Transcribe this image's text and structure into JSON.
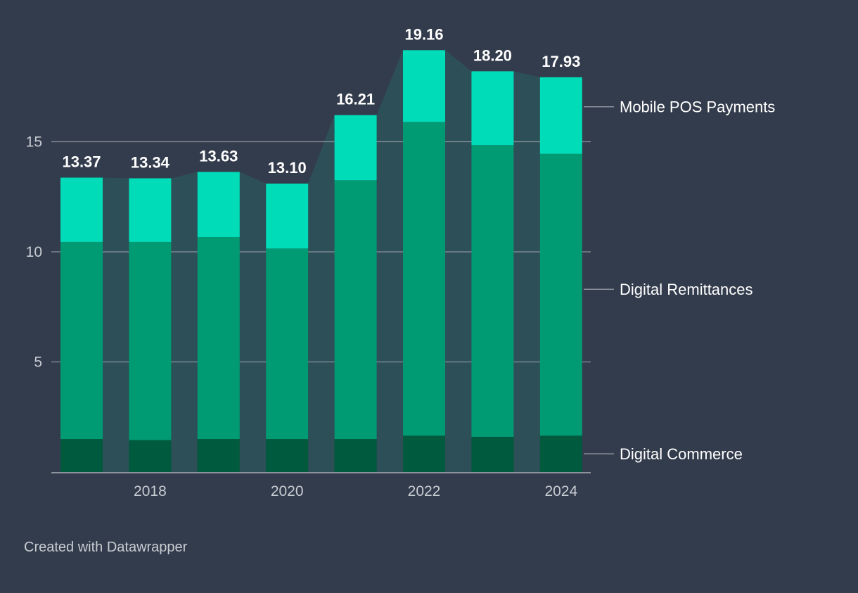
{
  "chart_data": {
    "type": "bar",
    "stacked": true,
    "x": [
      2017,
      2018,
      2019,
      2020,
      2021,
      2022,
      2023,
      2024
    ],
    "x_tick_labels": [
      "2018",
      "2020",
      "2022",
      "2024"
    ],
    "series": [
      {
        "name": "Digital Commerce",
        "values": [
          1.5,
          1.45,
          1.5,
          1.5,
          1.5,
          1.65,
          1.6,
          1.65
        ]
      },
      {
        "name": "Digital Remittances",
        "values": [
          8.95,
          9.0,
          9.17,
          8.65,
          11.75,
          14.25,
          13.25,
          12.8
        ]
      },
      {
        "name": "Mobile POS Payments",
        "values": [
          2.92,
          2.89,
          2.96,
          2.95,
          2.96,
          3.26,
          3.35,
          3.48
        ]
      }
    ],
    "totals": [
      13.37,
      13.34,
      13.63,
      13.1,
      16.21,
      19.16,
      18.2,
      17.93
    ],
    "total_labels": [
      "13.37",
      "13.34",
      "13.63",
      "13.10",
      "16.21",
      "19.16",
      "18.20",
      "17.93"
    ],
    "y_ticks": [
      5,
      10,
      15
    ],
    "y_tick_labels": [
      "5",
      "10",
      "15"
    ],
    "ylim": [
      0,
      20
    ],
    "grid": true,
    "legend": "right, inline labels",
    "colors": {
      "background": "#333c4c",
      "Digital Commerce": "#005a3e",
      "Digital Remittances": "#009b73",
      "Mobile POS Payments": "#00dcb8",
      "connector": "#2d5158",
      "grid": "#8b919a",
      "axis_text": "#c9cdd3",
      "value_label": "#ffffff"
    }
  },
  "footer": {
    "credit": "Created with Datawrapper"
  }
}
